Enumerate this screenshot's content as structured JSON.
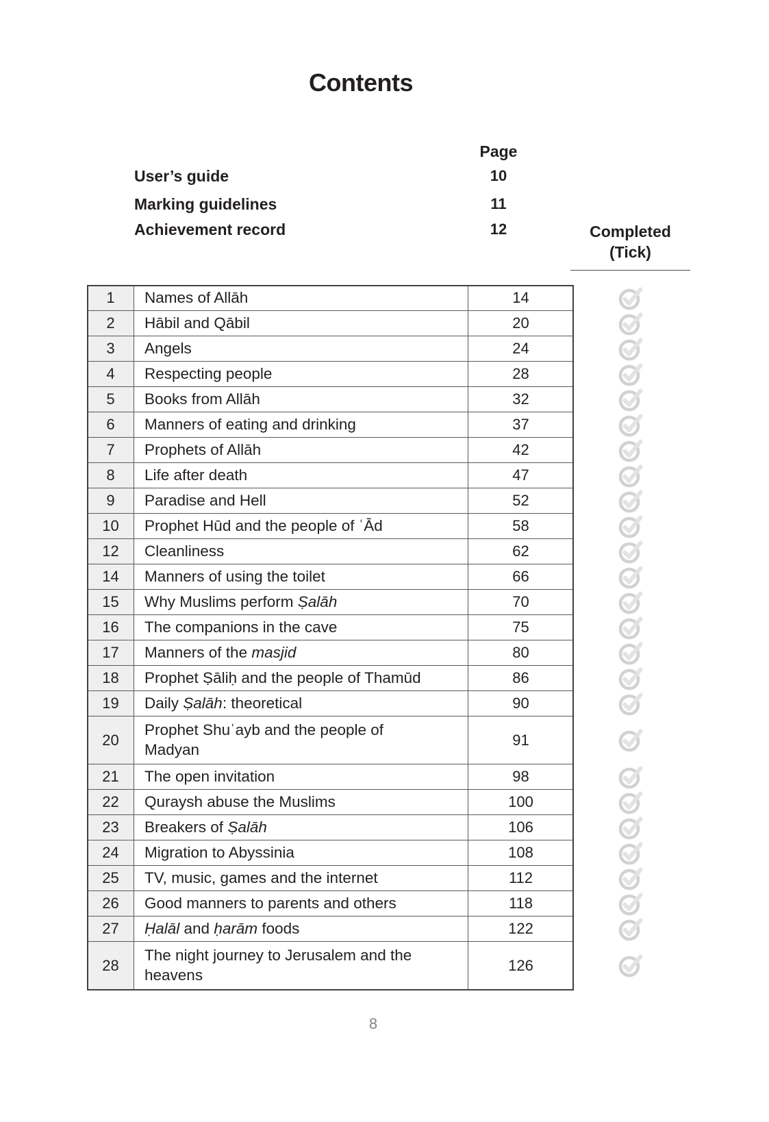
{
  "page": {
    "title": "Contents",
    "footer_page_number": "8"
  },
  "header": {
    "page_column_label": "Page",
    "front_matter": [
      {
        "label": "User’s guide",
        "page": "10"
      },
      {
        "label": "Marking guidelines",
        "page": "11"
      },
      {
        "label": "Achievement record",
        "page": "12"
      }
    ],
    "completed_line1": "Completed",
    "completed_line2": "(Tick)"
  },
  "table": {
    "rows": [
      {
        "num": "1",
        "page": "14",
        "title": [
          {
            "text": "Names of Allāh"
          }
        ]
      },
      {
        "num": "2",
        "page": "20",
        "title": [
          {
            "text": "Hābil and Qābil"
          }
        ]
      },
      {
        "num": "3",
        "page": "24",
        "title": [
          {
            "text": "Angels"
          }
        ]
      },
      {
        "num": "4",
        "page": "28",
        "title": [
          {
            "text": "Respecting people"
          }
        ]
      },
      {
        "num": "5",
        "page": "32",
        "title": [
          {
            "text": "Books from Allāh"
          }
        ]
      },
      {
        "num": "6",
        "page": "37",
        "title": [
          {
            "text": "Manners of eating and drinking"
          }
        ]
      },
      {
        "num": "7",
        "page": "42",
        "title": [
          {
            "text": "Prophets of Allāh"
          }
        ]
      },
      {
        "num": "8",
        "page": "47",
        "title": [
          {
            "text": "Life after death"
          }
        ]
      },
      {
        "num": "9",
        "page": "52",
        "title": [
          {
            "text": "Paradise and Hell"
          }
        ]
      },
      {
        "num": "10",
        "page": "58",
        "title": [
          {
            "text": "Prophet Hūd and the people of ʿĀd"
          }
        ]
      },
      {
        "num": "12",
        "page": "62",
        "title": [
          {
            "text": "Cleanliness"
          }
        ]
      },
      {
        "num": "14",
        "page": "66",
        "title": [
          {
            "text": "Manners of using the toilet"
          }
        ]
      },
      {
        "num": "15",
        "page": "70",
        "title": [
          {
            "text": "Why Muslims perform "
          },
          {
            "text": "Ṣalāh",
            "italic": true
          }
        ]
      },
      {
        "num": "16",
        "page": "75",
        "title": [
          {
            "text": "The companions in the cave"
          }
        ]
      },
      {
        "num": "17",
        "page": "80",
        "title": [
          {
            "text": "Manners of the "
          },
          {
            "text": "masjid",
            "italic": true
          }
        ]
      },
      {
        "num": "18",
        "page": "86",
        "title": [
          {
            "text": "Prophet Ṣāliḥ and the people of Thamūd"
          }
        ]
      },
      {
        "num": "19",
        "page": "90",
        "title": [
          {
            "text": "Daily "
          },
          {
            "text": "Ṣalāh",
            "italic": true
          },
          {
            "text": ": theoretical"
          }
        ]
      },
      {
        "num": "20",
        "page": "91",
        "tall": true,
        "title": [
          {
            "text": "Prophet Shuʿayb and the people of Madyan"
          }
        ]
      },
      {
        "num": "21",
        "page": "98",
        "title": [
          {
            "text": "The open invitation"
          }
        ]
      },
      {
        "num": "22",
        "page": "100",
        "title": [
          {
            "text": "Quraysh abuse the Muslims"
          }
        ]
      },
      {
        "num": "23",
        "page": "106",
        "title": [
          {
            "text": "Breakers of "
          },
          {
            "text": "Ṣalāh",
            "italic": true
          }
        ]
      },
      {
        "num": "24",
        "page": "108",
        "title": [
          {
            "text": "Migration to Abyssinia"
          }
        ]
      },
      {
        "num": "25",
        "page": "112",
        "title": [
          {
            "text": "TV, music, games and the internet"
          }
        ]
      },
      {
        "num": "26",
        "page": "118",
        "title": [
          {
            "text": "Good manners to parents and others"
          }
        ]
      },
      {
        "num": "27",
        "page": "122",
        "title": [
          {
            "text": "Ḥalāl",
            "italic": true
          },
          {
            "text": " and "
          },
          {
            "text": "ḥarām",
            "italic": true
          },
          {
            "text": " foods"
          }
        ]
      },
      {
        "num": "28",
        "page": "126",
        "tall": true,
        "title": [
          {
            "text": "The night journey to Jerusalem and the heavens"
          }
        ]
      }
    ]
  },
  "icons": {
    "completed_tick": "tick-circle-icon"
  },
  "colors": {
    "text": "#231f20",
    "table_outer_border": "#414042",
    "table_inner_border": "#58595b",
    "number_column_bg": "#efefef",
    "tick_circle": "#d2d2d2",
    "tick_check": "#e3e3e3",
    "footer_number": "#848484"
  }
}
